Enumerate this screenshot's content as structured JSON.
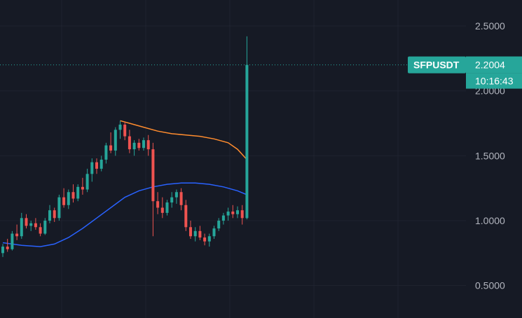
{
  "chart_data": {
    "type": "candlestick",
    "symbol": "SFPUSDT",
    "ylim": [
      0.25,
      2.7
    ],
    "grid": true,
    "y_ticks": [
      {
        "value": 2.5,
        "label": "2.5000"
      },
      {
        "value": 2.0,
        "label": "2.0000"
      },
      {
        "value": 1.5,
        "label": "1.5000"
      },
      {
        "value": 1.0,
        "label": "1.0000"
      },
      {
        "value": 0.5,
        "label": "0.5000"
      }
    ],
    "last_price": {
      "value": 2.2004,
      "label": "2.2004",
      "countdown": "10:16:43"
    },
    "colors": {
      "background": "#161a25",
      "grid": "#1f2330",
      "up": "#26a69a",
      "down": "#ef5350",
      "price_line": "#26a69a",
      "ma_fast": "#ff8c2e",
      "ma_slow": "#2962ff"
    },
    "candles": [
      [
        0.75,
        0.82,
        0.72,
        0.8
      ],
      [
        0.8,
        0.86,
        0.76,
        0.78
      ],
      [
        0.78,
        0.92,
        0.77,
        0.9
      ],
      [
        0.9,
        0.97,
        0.85,
        0.88
      ],
      [
        0.88,
        1.06,
        0.86,
        1.02
      ],
      [
        1.02,
        1.05,
        0.94,
        0.96
      ],
      [
        0.96,
        1.0,
        0.92,
        0.98
      ],
      [
        0.98,
        1.02,
        0.93,
        0.95
      ],
      [
        0.95,
        0.98,
        0.88,
        0.9
      ],
      [
        0.9,
        1.02,
        0.89,
        1.0
      ],
      [
        1.0,
        1.12,
        0.98,
        1.08
      ],
      [
        1.08,
        1.1,
        0.99,
        1.02
      ],
      [
        1.02,
        1.2,
        1.0,
        1.18
      ],
      [
        1.18,
        1.25,
        1.1,
        1.12
      ],
      [
        1.12,
        1.24,
        1.09,
        1.22
      ],
      [
        1.22,
        1.28,
        1.14,
        1.17
      ],
      [
        1.17,
        1.28,
        1.15,
        1.26
      ],
      [
        1.26,
        1.33,
        1.2,
        1.24
      ],
      [
        1.24,
        1.4,
        1.22,
        1.36
      ],
      [
        1.36,
        1.48,
        1.3,
        1.45
      ],
      [
        1.45,
        1.48,
        1.36,
        1.4
      ],
      [
        1.4,
        1.5,
        1.38,
        1.47
      ],
      [
        1.47,
        1.6,
        1.44,
        1.58
      ],
      [
        1.58,
        1.68,
        1.52,
        1.54
      ],
      [
        1.54,
        1.72,
        1.5,
        1.7
      ],
      [
        1.7,
        1.77,
        1.63,
        1.74
      ],
      [
        1.74,
        1.76,
        1.62,
        1.65
      ],
      [
        1.65,
        1.7,
        1.52,
        1.55
      ],
      [
        1.55,
        1.62,
        1.5,
        1.6
      ],
      [
        1.6,
        1.63,
        1.54,
        1.56
      ],
      [
        1.56,
        1.64,
        1.54,
        1.62
      ],
      [
        1.62,
        1.66,
        1.5,
        1.55
      ],
      [
        1.55,
        1.6,
        0.88,
        1.15
      ],
      [
        1.15,
        1.22,
        1.05,
        1.1
      ],
      [
        1.1,
        1.18,
        1.02,
        1.06
      ],
      [
        1.06,
        1.16,
        1.04,
        1.14
      ],
      [
        1.14,
        1.22,
        1.1,
        1.18
      ],
      [
        1.18,
        1.24,
        1.13,
        1.22
      ],
      [
        1.22,
        1.25,
        1.08,
        1.12
      ],
      [
        1.12,
        1.16,
        0.92,
        0.95
      ],
      [
        0.95,
        1.0,
        0.86,
        0.88
      ],
      [
        0.88,
        0.95,
        0.84,
        0.92
      ],
      [
        0.92,
        0.96,
        0.85,
        0.87
      ],
      [
        0.87,
        0.9,
        0.81,
        0.84
      ],
      [
        0.84,
        0.9,
        0.8,
        0.88
      ],
      [
        0.88,
        0.96,
        0.86,
        0.94
      ],
      [
        0.94,
        1.02,
        0.92,
        1.0
      ],
      [
        1.0,
        1.06,
        0.97,
        1.04
      ],
      [
        1.04,
        1.1,
        1.0,
        1.07
      ],
      [
        1.07,
        1.12,
        1.02,
        1.05
      ],
      [
        1.05,
        1.11,
        1.02,
        1.08
      ],
      [
        1.08,
        1.12,
        0.97,
        1.02
      ],
      [
        1.02,
        2.42,
        1.01,
        2.2
      ]
    ],
    "ma_fast": [
      [
        25,
        1.77
      ],
      [
        27,
        1.75
      ],
      [
        30,
        1.72
      ],
      [
        33,
        1.69
      ],
      [
        36,
        1.67
      ],
      [
        39,
        1.66
      ],
      [
        42,
        1.65
      ],
      [
        45,
        1.63
      ],
      [
        48,
        1.6
      ],
      [
        50,
        1.55
      ],
      [
        52,
        1.47
      ]
    ],
    "ma_slow": [
      [
        0,
        0.83
      ],
      [
        4,
        0.81
      ],
      [
        8,
        0.8
      ],
      [
        11,
        0.82
      ],
      [
        14,
        0.87
      ],
      [
        17,
        0.94
      ],
      [
        20,
        1.02
      ],
      [
        23,
        1.1
      ],
      [
        26,
        1.18
      ],
      [
        29,
        1.23
      ],
      [
        32,
        1.26
      ],
      [
        35,
        1.28
      ],
      [
        38,
        1.29
      ],
      [
        41,
        1.29
      ],
      [
        44,
        1.28
      ],
      [
        47,
        1.26
      ],
      [
        50,
        1.23
      ],
      [
        52,
        1.2
      ]
    ]
  }
}
